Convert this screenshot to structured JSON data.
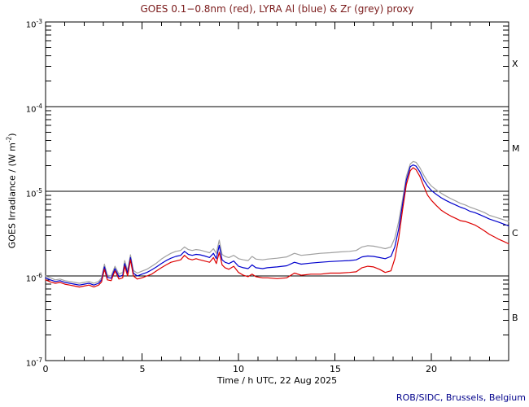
{
  "title": "GOES 0.1−0.8nm (red), LYRA Al (blue) & Zr (grey) proxy",
  "footer": "ROB/SIDC, Brussels, Belgium",
  "colors": {
    "title": "#7a1a1a",
    "footer": "#00008b",
    "axis": "#000000",
    "red": "#dd0000",
    "blue": "#0000cd",
    "grey": "#a0a0a0"
  },
  "chart_data": {
    "type": "line",
    "title": "GOES 0.1−0.8nm (red), LYRA Al (blue) & Zr (grey) proxy",
    "xlabel": "Time / h UTC, 22 Aug 2025",
    "ylabel": "GOES Irradiance / (W m-2)",
    "ylabel_parts": {
      "prefix": "GOES Irradiance / (W m",
      "sup": "-2",
      "suffix": ")"
    },
    "xlim": [
      0,
      24
    ],
    "yscale": "log",
    "ylim": [
      1e-07,
      0.001
    ],
    "grid_decades": [
      -4,
      -5,
      -6
    ],
    "x_major_ticks": [
      0,
      5,
      10,
      15,
      20
    ],
    "x_minor_step": 1,
    "x_tick_labels": [
      "0",
      "5",
      "10",
      "15",
      "20"
    ],
    "y_ticks": [
      {
        "base": "10",
        "exp": "-3"
      },
      {
        "base": "10",
        "exp": "-4"
      },
      {
        "base": "10",
        "exp": "-5"
      },
      {
        "base": "10",
        "exp": "-6"
      },
      {
        "base": "10",
        "exp": "-7"
      }
    ],
    "flare_class_labels": [
      "X",
      "M",
      "C",
      "B"
    ],
    "legend_position": "none",
    "grid": "decade-lines",
    "unit_scale": 1e-06,
    "x": [
      0,
      0.25,
      0.5,
      0.75,
      1,
      1.25,
      1.5,
      1.75,
      2,
      2.25,
      2.5,
      2.75,
      2.9,
      3.05,
      3.2,
      3.4,
      3.6,
      3.8,
      4,
      4.1,
      4.25,
      4.4,
      4.55,
      4.75,
      5,
      5.25,
      5.5,
      5.75,
      6,
      6.25,
      6.5,
      6.75,
      7,
      7.2,
      7.4,
      7.6,
      7.8,
      8,
      8.25,
      8.5,
      8.7,
      8.85,
      9,
      9.15,
      9.3,
      9.5,
      9.75,
      10,
      10.25,
      10.5,
      10.7,
      10.9,
      11.25,
      11.5,
      12,
      12.5,
      12.9,
      13.25,
      13.75,
      14.25,
      14.75,
      15.25,
      15.75,
      16.1,
      16.4,
      16.7,
      17,
      17.3,
      17.6,
      17.9,
      18.1,
      18.3,
      18.5,
      18.7,
      18.9,
      19.05,
      19.2,
      19.4,
      19.6,
      19.8,
      20,
      20.25,
      20.5,
      20.75,
      21,
      21.25,
      21.5,
      21.75,
      22,
      22.25,
      22.5,
      22.75,
      23,
      23.25,
      23.5,
      23.75,
      24
    ],
    "series": [
      {
        "name": "GOES 0.1-0.8nm",
        "color_key": "red",
        "color": "#dd0000",
        "values": [
          0.9,
          0.85,
          0.82,
          0.84,
          0.8,
          0.78,
          0.76,
          0.74,
          0.76,
          0.78,
          0.74,
          0.78,
          0.85,
          1.2,
          0.9,
          0.88,
          1.15,
          0.92,
          0.95,
          1.3,
          1.0,
          1.55,
          1.0,
          0.92,
          0.95,
          1.0,
          1.05,
          1.15,
          1.25,
          1.35,
          1.45,
          1.5,
          1.55,
          1.75,
          1.6,
          1.55,
          1.6,
          1.55,
          1.5,
          1.45,
          1.65,
          1.4,
          1.9,
          1.35,
          1.25,
          1.2,
          1.3,
          1.1,
          1.02,
          0.98,
          1.05,
          0.98,
          0.95,
          0.95,
          0.93,
          0.95,
          1.08,
          1.02,
          1.05,
          1.05,
          1.08,
          1.08,
          1.1,
          1.12,
          1.25,
          1.3,
          1.28,
          1.2,
          1.1,
          1.15,
          1.6,
          2.8,
          6.0,
          12.0,
          17.5,
          19.0,
          18.0,
          15.0,
          11.5,
          9.0,
          7.8,
          6.8,
          6.0,
          5.5,
          5.1,
          4.8,
          4.5,
          4.4,
          4.2,
          4.0,
          3.7,
          3.4,
          3.1,
          2.9,
          2.7,
          2.55,
          2.4
        ]
      },
      {
        "name": "LYRA Al proxy",
        "color_key": "blue",
        "color": "#0000cd",
        "values": [
          0.95,
          0.9,
          0.86,
          0.88,
          0.84,
          0.82,
          0.8,
          0.78,
          0.8,
          0.82,
          0.78,
          0.82,
          0.9,
          1.28,
          0.96,
          0.94,
          1.22,
          0.98,
          1.02,
          1.4,
          1.08,
          1.65,
          1.08,
          1.0,
          1.05,
          1.1,
          1.18,
          1.28,
          1.4,
          1.52,
          1.62,
          1.7,
          1.75,
          1.95,
          1.8,
          1.75,
          1.8,
          1.78,
          1.72,
          1.65,
          1.85,
          1.6,
          2.3,
          1.55,
          1.45,
          1.4,
          1.5,
          1.3,
          1.25,
          1.22,
          1.35,
          1.25,
          1.22,
          1.25,
          1.28,
          1.32,
          1.45,
          1.38,
          1.42,
          1.45,
          1.48,
          1.5,
          1.52,
          1.55,
          1.68,
          1.72,
          1.7,
          1.65,
          1.6,
          1.7,
          2.2,
          3.6,
          7.0,
          13.5,
          19.5,
          20.5,
          19.8,
          17.0,
          13.5,
          11.5,
          10.2,
          9.2,
          8.4,
          7.8,
          7.3,
          6.9,
          6.5,
          6.2,
          5.8,
          5.6,
          5.3,
          5.0,
          4.7,
          4.5,
          4.3,
          4.1,
          3.9
        ]
      },
      {
        "name": "LYRA Zr proxy",
        "color_key": "grey",
        "color": "#a0a0a0",
        "values": [
          1.0,
          0.95,
          0.9,
          0.92,
          0.88,
          0.86,
          0.84,
          0.82,
          0.84,
          0.86,
          0.82,
          0.86,
          0.95,
          1.38,
          1.02,
          1.0,
          1.3,
          1.05,
          1.1,
          1.52,
          1.15,
          1.78,
          1.16,
          1.08,
          1.14,
          1.2,
          1.3,
          1.42,
          1.58,
          1.72,
          1.85,
          1.95,
          2.0,
          2.2,
          2.05,
          2.0,
          2.05,
          2.02,
          1.95,
          1.88,
          2.1,
          1.85,
          2.65,
          1.8,
          1.7,
          1.65,
          1.75,
          1.6,
          1.55,
          1.52,
          1.7,
          1.58,
          1.55,
          1.58,
          1.62,
          1.68,
          1.85,
          1.75,
          1.8,
          1.85,
          1.88,
          1.92,
          1.95,
          2.0,
          2.2,
          2.28,
          2.25,
          2.18,
          2.1,
          2.2,
          2.8,
          4.4,
          8.0,
          15.0,
          21.0,
          22.5,
          22.0,
          19.0,
          15.5,
          13.0,
          11.5,
          10.4,
          9.5,
          8.8,
          8.2,
          7.7,
          7.2,
          6.9,
          6.5,
          6.2,
          5.9,
          5.6,
          5.2,
          5.0,
          4.8,
          4.6,
          4.4
        ]
      }
    ]
  }
}
